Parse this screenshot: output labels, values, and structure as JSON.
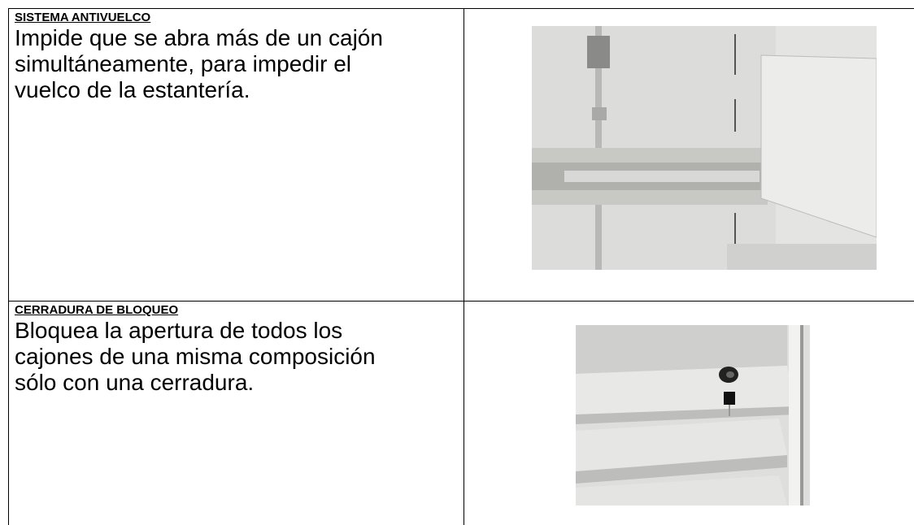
{
  "table": {
    "rows": [
      {
        "heading": "SISTEMA ANTIVUELCO",
        "lines": [
          "Impide que se abra más de un cajón",
          "simultáneamente, para impedir el",
          "vuelco de la estantería."
        ]
      },
      {
        "heading": "CERRADURA DE BLOQUEO",
        "lines": [
          "Bloquea la apertura de todos los",
          "cajones de una misma composición",
          "sólo con una cerradura."
        ]
      }
    ]
  }
}
